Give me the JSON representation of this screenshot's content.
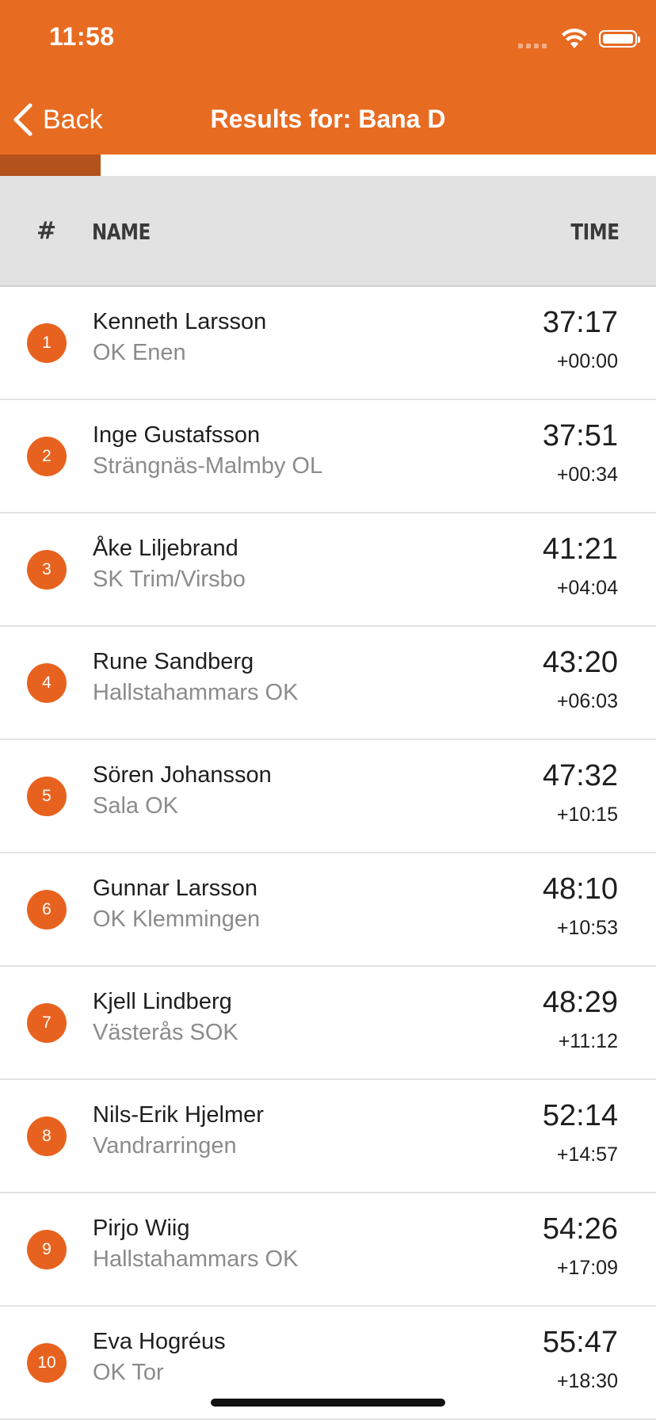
{
  "status_bar": {
    "time": "11:58"
  },
  "nav": {
    "back_label": "Back",
    "title": "Results for: Bana D"
  },
  "progress": {
    "fraction": 0.153,
    "fill_color": "#B3521B"
  },
  "colors": {
    "accent": "#E86B22",
    "badge": "#E8621F"
  },
  "table_header": {
    "rank": "#",
    "name": "NAME",
    "time": "TIME"
  },
  "results": [
    {
      "rank": "1",
      "name": "Kenneth Larsson",
      "club": "OK Enen",
      "time": "37:17",
      "diff": "+00:00"
    },
    {
      "rank": "2",
      "name": "Inge Gustafsson",
      "club": "Strängnäs-Malmby OL",
      "time": "37:51",
      "diff": "+00:34"
    },
    {
      "rank": "3",
      "name": "Åke Liljebrand",
      "club": "SK Trim/Virsbo",
      "time": "41:21",
      "diff": "+04:04"
    },
    {
      "rank": "4",
      "name": "Rune Sandberg",
      "club": "Hallstahammars OK",
      "time": "43:20",
      "diff": "+06:03"
    },
    {
      "rank": "5",
      "name": "Sören Johansson",
      "club": "Sala OK",
      "time": "47:32",
      "diff": "+10:15"
    },
    {
      "rank": "6",
      "name": "Gunnar Larsson",
      "club": "OK Klemmingen",
      "time": "48:10",
      "diff": "+10:53"
    },
    {
      "rank": "7",
      "name": "Kjell Lindberg",
      "club": "Västerås SOK",
      "time": "48:29",
      "diff": "+11:12"
    },
    {
      "rank": "8",
      "name": "Nils-Erik Hjelmer",
      "club": "Vandrarringen",
      "time": "52:14",
      "diff": "+14:57"
    },
    {
      "rank": "9",
      "name": "Pirjo Wiig",
      "club": "Hallstahammars OK",
      "time": "54:26",
      "diff": "+17:09"
    },
    {
      "rank": "10",
      "name": "Eva Hogréus",
      "club": "OK Tor",
      "time": "55:47",
      "diff": "+18:30"
    }
  ]
}
